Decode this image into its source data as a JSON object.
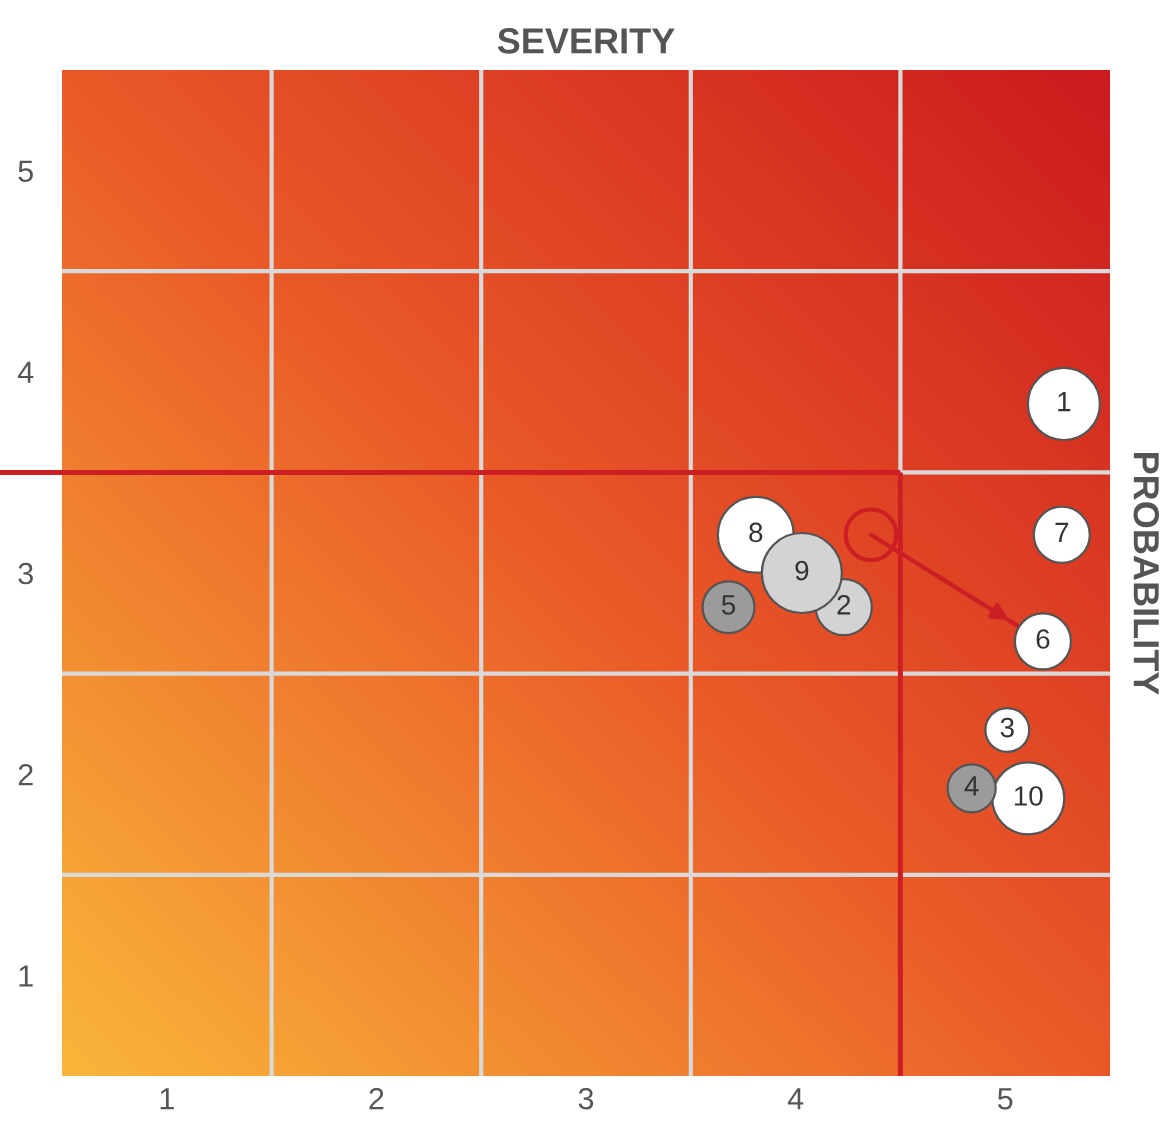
{
  "chart_data": {
    "type": "bubble",
    "title": "SEVERITY",
    "ylabel": "PROBABILITY",
    "xlim": [
      0.5,
      5.5
    ],
    "ylim": [
      0.5,
      5.5
    ],
    "xticks": [
      1,
      2,
      3,
      4,
      5,
      {
        "value": 1.5,
        "label": null
      },
      {
        "value": 2.5,
        "label": null
      },
      {
        "value": 3.5,
        "label": null
      },
      {
        "value": 4.5,
        "label": null
      }
    ],
    "yticks": [
      1,
      2,
      3,
      4,
      5,
      {
        "value": 1.5,
        "label": null
      },
      {
        "value": 2.5,
        "label": null
      },
      {
        "value": 3.5,
        "label": null
      },
      {
        "value": 4.5,
        "label": null
      }
    ],
    "grid": true,
    "legend": false,
    "series": [
      {
        "color": "#ffffff",
        "x": [
          5.28,
          5.01,
          5.18,
          5.27,
          3.81,
          5.11
        ],
        "values": [
          3.84,
          2.22,
          2.66,
          3.19,
          3.19,
          1.88
        ],
        "sizes": [
          0.81,
          0.3,
          0.49,
          0.49,
          0.9,
          0.81
        ]
      },
      {
        "color": "#d3d3d3",
        "x": [
          4.23,
          4.03
        ],
        "values": [
          2.83,
          3.0
        ],
        "sizes": [
          0.49,
          1
        ]
      },
      {
        "color": "#9b9b9b",
        "x": [
          4.84,
          3.68
        ],
        "values": [
          1.93,
          2.83
        ],
        "sizes": [
          0.36,
          0.42
        ]
      },
      {
        "type": "line",
        "color": "#cc1f24",
        "x": [
          4.36,
          5.18
        ],
        "values": [
          3.19,
          2.66
        ],
        "marker": "circle"
      }
    ],
    "annotations": [
      {
        "text": "1",
        "x": 5.28,
        "y": 3.84
      },
      {
        "text": "3",
        "x": 5.01,
        "y": 2.22
      },
      {
        "text": "6",
        "x": 5.18,
        "y": 2.66
      },
      {
        "text": "7",
        "x": 5.27,
        "y": 3.19
      },
      {
        "text": "8",
        "x": 3.81,
        "y": 3.19
      },
      {
        "text": "10",
        "x": 5.11,
        "y": 1.88
      },
      {
        "text": "2",
        "x": 4.23,
        "y": 2.83
      },
      {
        "text": "9",
        "x": 4.03,
        "y": 3.0
      },
      {
        "text": "4",
        "x": 4.84,
        "y": 1.93
      },
      {
        "text": "5",
        "x": 3.68,
        "y": 2.83
      }
    ],
    "ref_lines": [
      {
        "axis": "y",
        "value": 3.5,
        "color": "#cc1f24"
      },
      {
        "axis": "x",
        "value": 4.5,
        "color": "#cc1f24"
      }
    ]
  }
}
